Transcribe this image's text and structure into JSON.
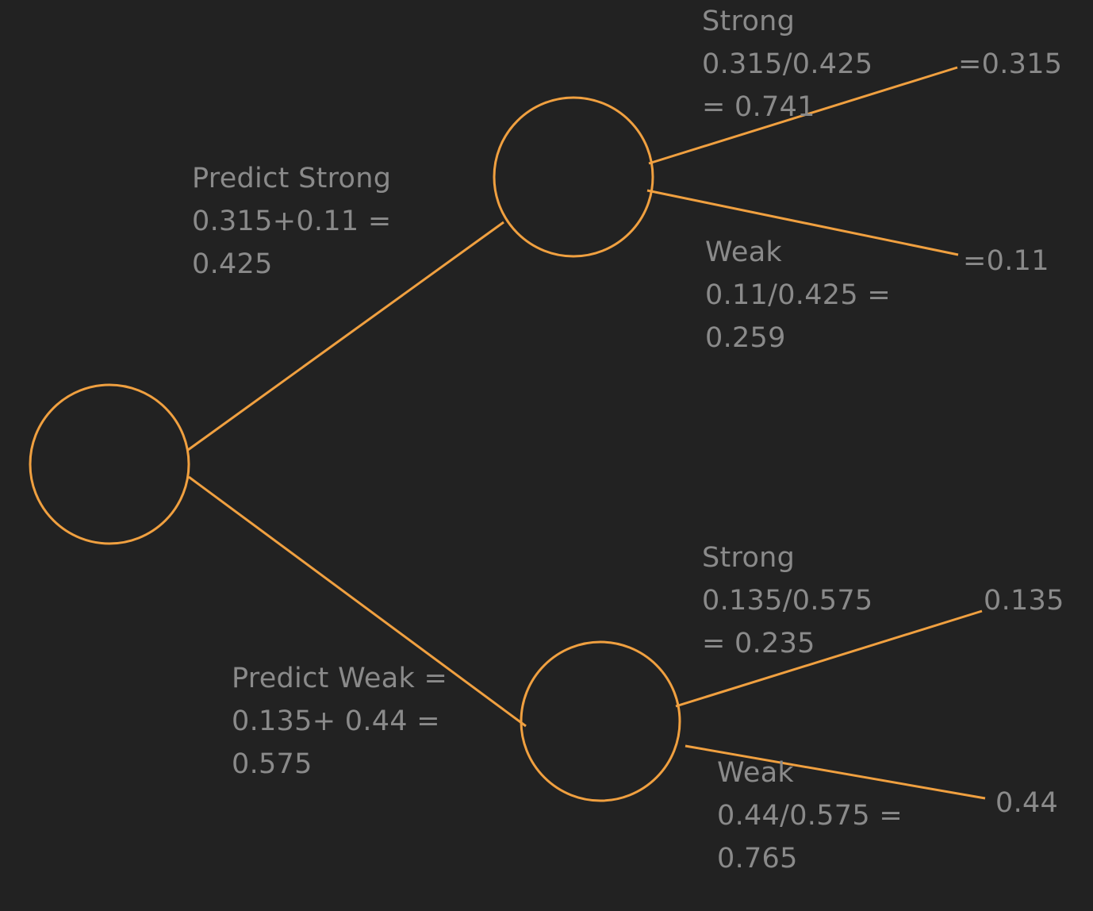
{
  "colors": {
    "background": "#222222",
    "stroke": "#f0a040",
    "text": "#8a8a8a"
  },
  "branches": {
    "predict_strong": {
      "line1": "Predict Strong",
      "line2": "0.315+0.11 =",
      "line3": "0.425"
    },
    "predict_weak": {
      "line1": "Predict Weak =",
      "line2": "0.135+ 0.44 =",
      "line3": "0.575"
    },
    "upper_strong": {
      "line1": "Strong",
      "line2": "0.315/0.425",
      "line3": "= 0.741"
    },
    "upper_weak": {
      "line1": "Weak",
      "line2": "0.11/0.425 =",
      "line3": "0.259"
    },
    "lower_strong": {
      "line1": "Strong",
      "line2": "0.135/0.575",
      "line3": "= 0.235"
    },
    "lower_weak": {
      "line1": "Weak",
      "line2": "0.44/0.575 =",
      "line3": "0.765"
    }
  },
  "leaves": {
    "upper_strong": "=0.315",
    "upper_weak": "=0.11",
    "lower_strong": "0.135",
    "lower_weak": "0.44"
  }
}
